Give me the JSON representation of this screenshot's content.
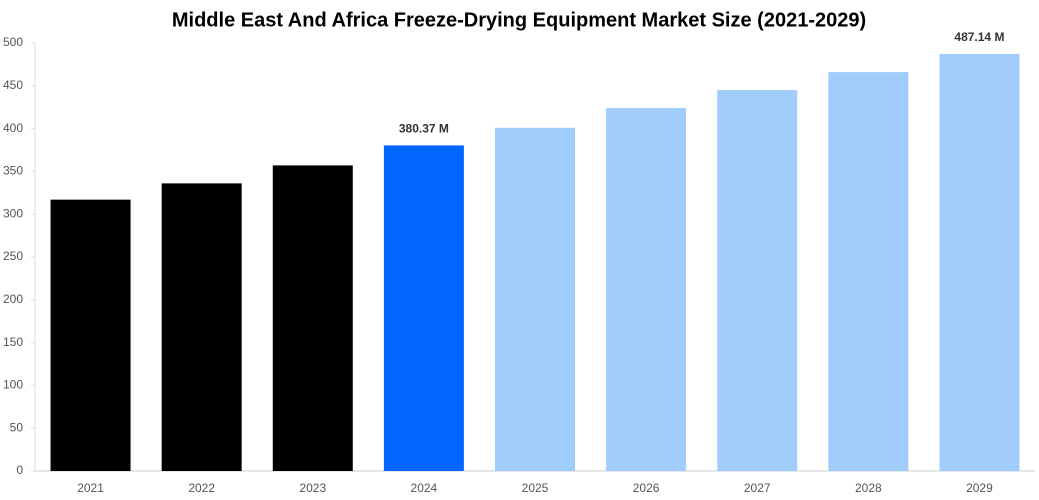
{
  "chart_data": {
    "type": "bar",
    "title": "Middle East And Africa Freeze-Drying Equipment Market Size (2021-2029)",
    "categories": [
      "2021",
      "2022",
      "2023",
      "2024",
      "2025",
      "2026",
      "2027",
      "2028",
      "2029"
    ],
    "values": [
      317,
      336,
      357,
      380.37,
      401,
      424,
      445,
      466,
      487.14
    ],
    "value_labels": [
      null,
      null,
      null,
      "380.37 M",
      null,
      null,
      null,
      null,
      "487.14 M"
    ],
    "colors": [
      "#000000",
      "#000000",
      "#000000",
      "#0066ff",
      "#a0cdfc",
      "#a0cdfc",
      "#a0cdfc",
      "#a0cdfc",
      "#a0cdfc"
    ],
    "ylim": [
      0,
      500
    ],
    "yticks": [
      0,
      50,
      100,
      150,
      200,
      250,
      300,
      350,
      400,
      450,
      500
    ],
    "grid": false
  }
}
